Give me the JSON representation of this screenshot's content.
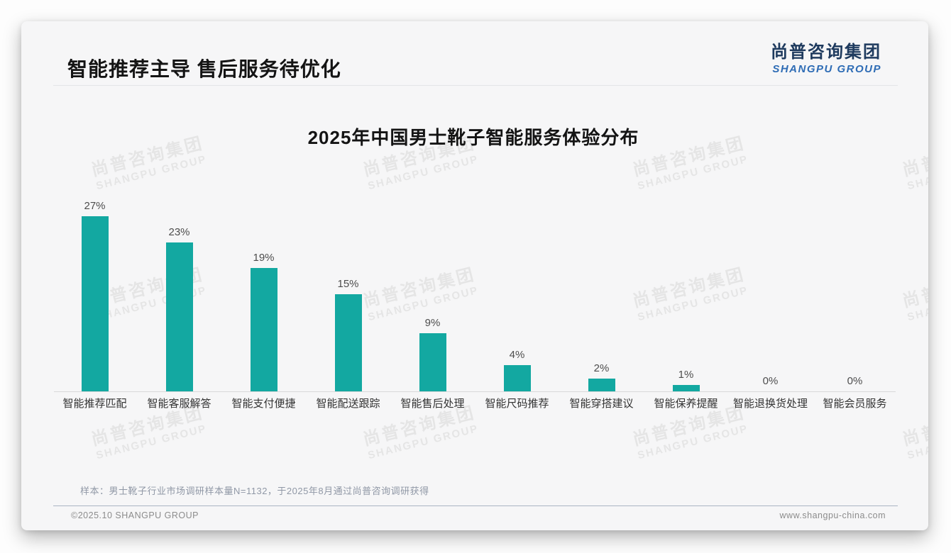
{
  "page": {
    "header": {
      "title": "智能推荐主导 售后服务待优化",
      "logo_cn": "尚普咨询集团",
      "logo_en": "SHANGPU GROUP"
    },
    "watermark": {
      "line1": "尚普咨询集团",
      "line2": "SHANGPU GROUP"
    },
    "footnote": "样本：男士靴子行业市场调研样本量N=1132，于2025年8月通过尚普咨询调研获得",
    "footer": {
      "left": "©2025.10 SHANGPU GROUP",
      "right": "www.shangpu-china.com"
    }
  },
  "colors": {
    "bar": "#13a8a1",
    "title_text": "#141414",
    "logo_navy": "#1e3a5e",
    "logo_blue": "#2e6cb5",
    "axis": "#d9d9d9",
    "footnote_text": "#9098a6",
    "card_bg": "#f6f6f7"
  },
  "chart_data": {
    "type": "bar",
    "title": "2025年中国男士靴子智能服务体验分布",
    "categories": [
      "智能推荐匹配",
      "智能客服解答",
      "智能支付便捷",
      "智能配送跟踪",
      "智能售后处理",
      "智能尺码推荐",
      "智能穿搭建议",
      "智能保养提醒",
      "智能退换货处理",
      "智能会员服务"
    ],
    "values": [
      27,
      23,
      19,
      15,
      9,
      4,
      2,
      1,
      0,
      0
    ],
    "unit": "%",
    "value_labels": [
      "27%",
      "23%",
      "19%",
      "15%",
      "9%",
      "4%",
      "2%",
      "1%",
      "0%",
      "0%"
    ],
    "bar_color": "#13a8a1",
    "xlabel": "",
    "ylabel": "",
    "ylim": [
      0,
      28
    ],
    "grid": false,
    "legend": null,
    "data_labels_position": "above-bar"
  }
}
